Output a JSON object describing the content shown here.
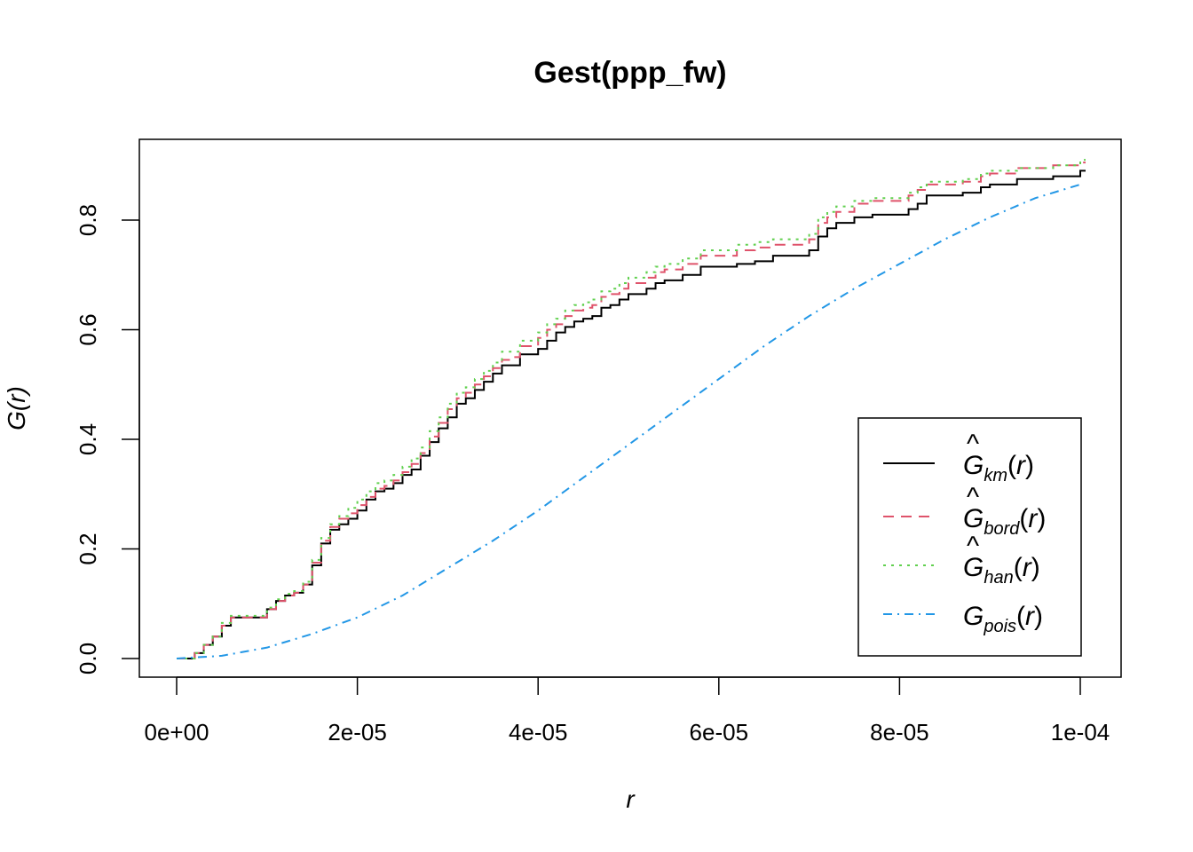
{
  "chart_data": {
    "type": "line",
    "title": "Gest(ppp_fw)",
    "xlabel": "r",
    "ylabel": "G(r)",
    "xlim": [
      0,
      0.0001
    ],
    "ylim": [
      0,
      0.9
    ],
    "xticks": [
      0,
      2e-05,
      4e-05,
      6e-05,
      8e-05,
      0.0001
    ],
    "xtick_labels": [
      "0e+00",
      "2e-05",
      "4e-05",
      "6e-05",
      "8e-05",
      "1e-04"
    ],
    "yticks": [
      0,
      0.2,
      0.4,
      0.6,
      0.8
    ],
    "ytick_labels": [
      "0.0",
      "0.2",
      "0.4",
      "0.6",
      "0.8"
    ],
    "grid": false,
    "legend_position": "bottom-right",
    "series": [
      {
        "key": "km",
        "symbol": "G",
        "hat": true,
        "subscript": "km",
        "color": "#000000",
        "dash": "",
        "x": [
          0,
          1e-06,
          2e-06,
          3e-06,
          4e-06,
          5e-06,
          6e-06,
          9e-06,
          1e-05,
          1.1e-05,
          1.2e-05,
          1.3e-05,
          1.4e-05,
          1.5e-05,
          1.6e-05,
          1.7e-05,
          1.8e-05,
          1.9e-05,
          2e-05,
          2.1e-05,
          2.2e-05,
          2.3e-05,
          2.4e-05,
          2.5e-05,
          2.6e-05,
          2.7e-05,
          2.8e-05,
          2.9e-05,
          3e-05,
          3.1e-05,
          3.2e-05,
          3.3e-05,
          3.4e-05,
          3.5e-05,
          3.6e-05,
          3.7e-05,
          3.8e-05,
          3.9e-05,
          4e-05,
          4.1e-05,
          4.2e-05,
          4.3e-05,
          4.4e-05,
          4.5e-05,
          4.6e-05,
          4.7e-05,
          4.8e-05,
          4.9e-05,
          5e-05,
          5.2e-05,
          5.3e-05,
          5.4e-05,
          5.6e-05,
          5.8e-05,
          6.2e-05,
          6.4e-05,
          6.6e-05,
          7e-05,
          7.1e-05,
          7.2e-05,
          7.3e-05,
          7.5e-05,
          7.7e-05,
          8.1e-05,
          8.2e-05,
          8.3e-05,
          8.7e-05,
          8.9e-05,
          9e-05,
          9.3e-05,
          9.7e-05,
          0.0001
        ],
        "y": [
          0,
          0,
          0.01,
          0.025,
          0.04,
          0.06,
          0.075,
          0.075,
          0.09,
          0.105,
          0.115,
          0.12,
          0.135,
          0.17,
          0.21,
          0.235,
          0.245,
          0.255,
          0.27,
          0.29,
          0.305,
          0.31,
          0.32,
          0.335,
          0.345,
          0.37,
          0.395,
          0.42,
          0.44,
          0.465,
          0.475,
          0.49,
          0.505,
          0.52,
          0.535,
          0.535,
          0.555,
          0.555,
          0.565,
          0.58,
          0.595,
          0.605,
          0.615,
          0.62,
          0.625,
          0.64,
          0.645,
          0.655,
          0.665,
          0.675,
          0.685,
          0.69,
          0.7,
          0.715,
          0.72,
          0.725,
          0.735,
          0.745,
          0.77,
          0.785,
          0.795,
          0.805,
          0.81,
          0.82,
          0.83,
          0.845,
          0.85,
          0.86,
          0.865,
          0.875,
          0.88,
          0.89
        ]
      },
      {
        "key": "bord",
        "symbol": "G",
        "hat": true,
        "subscript": "bord",
        "color": "#df536b",
        "dash": "12,8",
        "x": [
          0,
          1e-06,
          2e-06,
          3e-06,
          4e-06,
          5e-06,
          6e-06,
          9e-06,
          1e-05,
          1.1e-05,
          1.2e-05,
          1.3e-05,
          1.4e-05,
          1.5e-05,
          1.6e-05,
          1.7e-05,
          1.8e-05,
          1.9e-05,
          2e-05,
          2.1e-05,
          2.2e-05,
          2.3e-05,
          2.4e-05,
          2.5e-05,
          2.6e-05,
          2.7e-05,
          2.8e-05,
          2.9e-05,
          3e-05,
          3.1e-05,
          3.2e-05,
          3.3e-05,
          3.4e-05,
          3.5e-05,
          3.6e-05,
          3.7e-05,
          3.8e-05,
          3.9e-05,
          4e-05,
          4.1e-05,
          4.2e-05,
          4.3e-05,
          4.4e-05,
          4.5e-05,
          4.6e-05,
          4.7e-05,
          4.8e-05,
          4.9e-05,
          5e-05,
          5.2e-05,
          5.3e-05,
          5.4e-05,
          5.6e-05,
          5.8e-05,
          6.2e-05,
          6.4e-05,
          6.6e-05,
          7e-05,
          7.1e-05,
          7.2e-05,
          7.3e-05,
          7.5e-05,
          7.7e-05,
          8.1e-05,
          8.2e-05,
          8.3e-05,
          8.7e-05,
          8.9e-05,
          9e-05,
          9.3e-05,
          9.7e-05,
          0.0001
        ],
        "y": [
          0,
          0,
          0.01,
          0.025,
          0.04,
          0.06,
          0.075,
          0.075,
          0.09,
          0.105,
          0.115,
          0.12,
          0.135,
          0.175,
          0.215,
          0.24,
          0.255,
          0.265,
          0.28,
          0.295,
          0.31,
          0.315,
          0.325,
          0.34,
          0.355,
          0.375,
          0.405,
          0.43,
          0.455,
          0.475,
          0.485,
          0.5,
          0.515,
          0.53,
          0.545,
          0.55,
          0.57,
          0.57,
          0.585,
          0.6,
          0.61,
          0.625,
          0.635,
          0.64,
          0.645,
          0.66,
          0.665,
          0.675,
          0.685,
          0.695,
          0.705,
          0.71,
          0.72,
          0.735,
          0.745,
          0.75,
          0.755,
          0.765,
          0.795,
          0.805,
          0.815,
          0.83,
          0.835,
          0.845,
          0.855,
          0.865,
          0.87,
          0.88,
          0.885,
          0.895,
          0.9,
          0.905
        ]
      },
      {
        "key": "han",
        "symbol": "G",
        "hat": true,
        "subscript": "han",
        "color": "#61d04f",
        "dash": "3,6",
        "x": [
          0,
          1e-06,
          2e-06,
          3e-06,
          4e-06,
          5e-06,
          6e-06,
          9e-06,
          1e-05,
          1.1e-05,
          1.2e-05,
          1.3e-05,
          1.4e-05,
          1.5e-05,
          1.6e-05,
          1.7e-05,
          1.8e-05,
          1.9e-05,
          2e-05,
          2.1e-05,
          2.2e-05,
          2.3e-05,
          2.4e-05,
          2.5e-05,
          2.6e-05,
          2.7e-05,
          2.8e-05,
          2.9e-05,
          3e-05,
          3.1e-05,
          3.2e-05,
          3.3e-05,
          3.4e-05,
          3.5e-05,
          3.6e-05,
          3.7e-05,
          3.8e-05,
          3.9e-05,
          4e-05,
          4.1e-05,
          4.2e-05,
          4.3e-05,
          4.4e-05,
          4.5e-05,
          4.6e-05,
          4.7e-05,
          4.8e-05,
          4.9e-05,
          5e-05,
          5.2e-05,
          5.3e-05,
          5.4e-05,
          5.6e-05,
          5.8e-05,
          6.2e-05,
          6.4e-05,
          6.6e-05,
          7e-05,
          7.1e-05,
          7.2e-05,
          7.3e-05,
          7.5e-05,
          7.7e-05,
          8.1e-05,
          8.2e-05,
          8.3e-05,
          8.7e-05,
          8.9e-05,
          9e-05,
          9.3e-05,
          9.7e-05,
          0.0001
        ],
        "y": [
          0,
          0,
          0.01,
          0.025,
          0.04,
          0.065,
          0.078,
          0.078,
          0.093,
          0.108,
          0.118,
          0.123,
          0.14,
          0.18,
          0.22,
          0.245,
          0.26,
          0.275,
          0.29,
          0.305,
          0.32,
          0.325,
          0.335,
          0.35,
          0.365,
          0.385,
          0.415,
          0.44,
          0.465,
          0.485,
          0.495,
          0.51,
          0.525,
          0.54,
          0.56,
          0.56,
          0.58,
          0.58,
          0.595,
          0.61,
          0.62,
          0.635,
          0.645,
          0.65,
          0.655,
          0.67,
          0.675,
          0.685,
          0.695,
          0.705,
          0.715,
          0.72,
          0.73,
          0.745,
          0.755,
          0.76,
          0.765,
          0.775,
          0.805,
          0.815,
          0.825,
          0.835,
          0.84,
          0.85,
          0.86,
          0.87,
          0.875,
          0.885,
          0.89,
          0.895,
          0.9,
          0.91
        ]
      },
      {
        "key": "pois",
        "symbol": "G",
        "hat": false,
        "subscript": "pois",
        "color": "#2297e6",
        "dash": "10,6,2,6",
        "x": [
          0,
          5e-06,
          1e-05,
          1.5e-05,
          2e-05,
          2.5e-05,
          3e-05,
          3.5e-05,
          4e-05,
          4.5e-05,
          5e-05,
          5.5e-05,
          6e-05,
          6.5e-05,
          7e-05,
          7.5e-05,
          8e-05,
          8.5e-05,
          9e-05,
          9.5e-05,
          0.0001
        ],
        "y": [
          0,
          0.005,
          0.02,
          0.045,
          0.075,
          0.115,
          0.165,
          0.215,
          0.27,
          0.33,
          0.39,
          0.45,
          0.51,
          0.57,
          0.625,
          0.675,
          0.72,
          0.765,
          0.805,
          0.84,
          0.865
        ]
      }
    ]
  }
}
